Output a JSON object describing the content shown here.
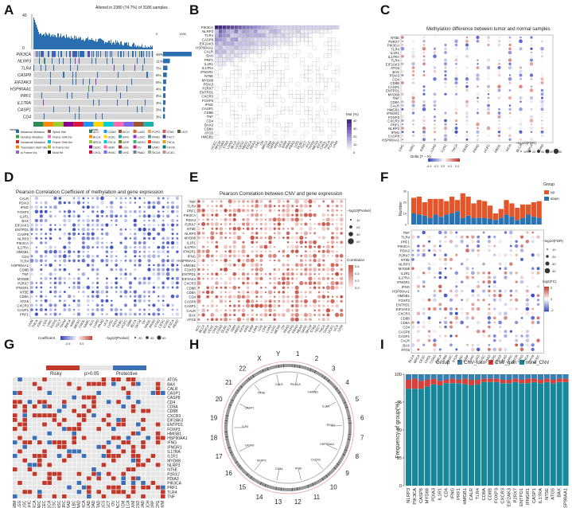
{
  "panels": {
    "A": {
      "letter": "A",
      "title": "Altered in 2380 (74.7%) of 3186 samples.",
      "y_top": "40",
      "y_zero": "0",
      "right_axis_left": "0",
      "right_axis_right": "1000"
    },
    "B": {
      "letter": "B",
      "legend_title": "Mut (%)"
    },
    "C": {
      "letter": "C",
      "title": "Methylation difference between tumor and normal samples",
      "delta_label": "Delta (T − N)",
      "size_label": "−log10(FDR)"
    },
    "D": {
      "letter": "D",
      "title": "Pearson Correlation Coefficient of methylation and gene expression",
      "coef_label": "Coefficient",
      "size_label": "−log10(Pvalue)"
    },
    "E": {
      "letter": "E",
      "title": "Pearson Correlation between CNV and gene expression",
      "size_label": "−log10(Pvalue)",
      "color_label": "Correlation"
    },
    "F": {
      "letter": "F",
      "bar_ylabel": "Number",
      "group_title": "Group",
      "group_items": [
        "up",
        "down"
      ],
      "size_label": "−log10(FDR)",
      "color_label": "log2(FC)"
    },
    "G": {
      "letter": "G",
      "legend": [
        "Risky",
        "p>0.05",
        "Protective"
      ]
    },
    "H": {
      "letter": "H"
    },
    "I": {
      "letter": "I",
      "ylabel": "Frequency of group(%)",
      "legend_title": "Group",
      "legend_items": [
        "CNV_loss",
        "CNV_gain",
        "none_CNV"
      ]
    }
  },
  "chart_data": [
    {
      "panel": "A",
      "type": "heatmap",
      "title": "Altered in 2380 (74.7%) of 3186 samples.",
      "genes": [
        "PIK3CA",
        "NLRP3",
        "TLR4",
        "CASP8",
        "EIF2AK3",
        "HSP90AA1",
        "PRF1",
        "IL17RA",
        "CASP1",
        "CD4"
      ],
      "percent": [
        "46%",
        "11%",
        "7%",
        "6%",
        "5%",
        "4%",
        "4%",
        "4%",
        "3%",
        "3%"
      ],
      "legend_variants": [
        "Missense_Mutation",
        "Nonstop_Mutation",
        "Nonsense_Mutation",
        "Translation_Start_Site",
        "In_Frame_Ins",
        "Splice_Site",
        "Frame_Shift_Ins",
        "Frame_Shift_Del",
        "In_Frame_Del",
        "Multi_Hit"
      ],
      "legend_cancers": [
        "ACC",
        "BLCA",
        "BRCA",
        "CESC",
        "CHOL",
        "COAD",
        "DLBC",
        "ESCA",
        "GBM",
        "HNSC",
        "KICH",
        "KIRC",
        "KIRP",
        "LGG",
        "LIHC",
        "LUAD",
        "LUSC",
        "MESO",
        "OV",
        "PAAD",
        "PCPG",
        "PRAD",
        "READ",
        "SARC",
        "SKCM",
        "STAD",
        "TGCT",
        "THCA",
        "THYM",
        "UCEC",
        "UCS"
      ],
      "legend_title_variant": "Variant",
      "legend_title_cancer": "Cancer"
    },
    {
      "panel": "B",
      "type": "heatmap",
      "genes": [
        "PIK3CA",
        "NLRP3",
        "TLR4",
        "CASP8",
        "EIF2AK3",
        "HSP90AA1",
        "CALR",
        "BAX",
        "PRF1",
        "IL1R1",
        "IL17RA",
        "IFNGR1",
        "NT5E",
        "MYD88",
        "PDIA3",
        "P2RX7",
        "ENTPD1",
        "CXCR3",
        "FOXP3",
        "IFNG",
        "CASP1",
        "CD8B",
        "TNF",
        "CD4",
        "BAX2",
        "CD8A",
        "ATG5",
        "HMGB1"
      ],
      "cancers": [
        "UCEC",
        "SKCM",
        "COAD",
        "STAD",
        "LUAD",
        "BLCA",
        "LUSC",
        "CESC",
        "HNSC",
        "ESCA",
        "READ",
        "LIHC",
        "OV",
        "BRCA",
        "GBM",
        "SARC",
        "KIRC",
        "UCS",
        "KIRP",
        "PAAD",
        "PRAD",
        "LGG",
        "DLBC",
        "TGCT",
        "ACC",
        "THYM",
        "MESO",
        "KICH",
        "CHOL",
        "THCA",
        "PCPG",
        "UVM"
      ],
      "ylim": [
        0,
        40
      ],
      "legend_ticks": [
        "40",
        "30",
        "20",
        "10",
        "0"
      ]
    },
    {
      "panel": "C",
      "type": "scatter",
      "genes": [
        "NT5E",
        "P2RX7",
        "PIK3CA",
        "TLR4",
        "IL1R1",
        "IL17RA",
        "TLR4b",
        "EIF2AK3",
        "ATG5",
        "BAX",
        "PDIA3",
        "CD4",
        "CD8B",
        "CASP1",
        "ENTPD1",
        "MYD88",
        "TNF",
        "CD8A",
        "CALR",
        "HMGB1",
        "IFNGR1",
        "FOXP3",
        "CXCR3",
        "PRF1",
        "NLRP3",
        "IFNG",
        "CASP8",
        "HSP90AA1"
      ],
      "cancers": [
        "LIHC",
        "KIRC",
        "KIRP",
        "LUAD",
        "LUSC",
        "THCA",
        "PAAD",
        "PRAD",
        "UCEC",
        "HNSC",
        "KICH",
        "BLCA",
        "BRCA",
        "COAD"
      ],
      "delta_ticks": [
        "-0.4",
        "-0.2",
        "0.0",
        "0.2",
        "0.4"
      ],
      "size_ticks": [
        "10",
        "20",
        "30",
        "40",
        "50"
      ]
    },
    {
      "panel": "D",
      "type": "scatter",
      "genes": [
        "CALR",
        "PDIA3",
        "IFNG",
        "FOXP3",
        "IL1R1",
        "BAX",
        "EIF2AK3",
        "ENTPD1",
        "CASP8",
        "NLRP3",
        "PIK3CA",
        "IL17RA",
        "HMGB1",
        "CD4",
        "TLR4",
        "HSP90AA1",
        "CD8B",
        "TNF",
        "MYD88",
        "P2RX7",
        "IFNGR1",
        "NT5E",
        "CD8A",
        "ATG5",
        "CXCR3",
        "CASP1",
        "PRF1"
      ],
      "cancers": [
        "UVM",
        "THCA",
        "KIRC",
        "LGG",
        "LIHC",
        "PCPG",
        "TGCT",
        "THYM",
        "BRCA",
        "KIRP",
        "MESO",
        "CHOL",
        "SARC",
        "ACC",
        "LUAD",
        "PAAD",
        "UCS",
        "LUSC",
        "KICH",
        "DLBC",
        "UCEC",
        "GBM",
        "BLCA",
        "SKCM",
        "OV",
        "HNSC",
        "PRAD",
        "STAD",
        "CESC",
        "COAD",
        "ESCA",
        "READ"
      ],
      "coef_ticks": [
        "-0.5",
        "0.0"
      ],
      "size_ticks": [
        "20",
        "40",
        "60"
      ]
    },
    {
      "panel": "E",
      "type": "scatter",
      "genes": [
        "TNF",
        "TLR4",
        "PRF1",
        "PIK3CA",
        "PDIA3",
        "P2RX7",
        "NT5E",
        "NLRP3",
        "MYD88",
        "IL1R1",
        "IL17RA",
        "IFNGR1",
        "IFNG",
        "HSP90AA1",
        "HMGB1",
        "FOXP3",
        "ENTPD1",
        "EIF2AK3",
        "CXCR3",
        "CD8B",
        "CD8A",
        "CD4",
        "CASP8",
        "CASP1",
        "CALR",
        "BAX",
        "ATG5"
      ],
      "cancers": [
        "ACC",
        "BLCA",
        "BRCA",
        "CESC",
        "CHOL",
        "COAD",
        "DLBC",
        "ESCA",
        "GBM",
        "HNSC",
        "KICH",
        "KIRC",
        "KIRP",
        "LAML",
        "LGG",
        "LIHC",
        "LUAD",
        "LUSC",
        "MESO",
        "OV",
        "PAAD",
        "PCPG",
        "PRAD",
        "READ",
        "SARC",
        "SKCM",
        "STAD",
        "TGCT",
        "THCA",
        "THYM",
        "UCEC",
        "UCS",
        "UVM"
      ],
      "size_ticks": [
        "10",
        "20",
        "30",
        "40"
      ],
      "color_ticks": [
        "0.6",
        "0.4",
        "0.2",
        "0.0"
      ]
    },
    {
      "panel": "F",
      "type": "bar",
      "cancers": [
        "BLCA",
        "BRCA",
        "CESC",
        "CHOL",
        "COAD",
        "ESCA",
        "GBM",
        "HNSC",
        "KICH",
        "KIRC",
        "KIRP",
        "LIHC",
        "LUAD",
        "LUSC",
        "PAAD",
        "PCPG",
        "PRAD",
        "READ",
        "SARC",
        "SKCM",
        "STAD",
        "THCA",
        "THYM",
        "UCEC"
      ],
      "series": [
        {
          "name": "up",
          "values": [
            14,
            16,
            12,
            17,
            14,
            16,
            12,
            15,
            10,
            22,
            17,
            13,
            16,
            15,
            12,
            6,
            8,
            13,
            12,
            11,
            12,
            9,
            13,
            15
          ]
        },
        {
          "name": "down",
          "values": [
            10,
            9,
            8,
            6,
            9,
            7,
            9,
            10,
            12,
            6,
            8,
            6,
            6,
            6,
            5,
            4,
            6,
            9,
            7,
            4,
            6,
            9,
            7,
            6
          ]
        }
      ],
      "ylim": [
        0,
        30
      ],
      "yticks": [
        "0",
        "10",
        "20",
        "30"
      ],
      "genes": [
        "TNF",
        "TLR4",
        "PRF1",
        "PIK3CA",
        "PDIA3",
        "P2RX7",
        "NT5E",
        "NLRP3",
        "MYD88",
        "IL1R1",
        "IL17RA",
        "IFNGR1",
        "IFNG",
        "HSP90AA1",
        "HMGB1",
        "FOXP3",
        "ENTPD1",
        "EIF2AK3",
        "CXCR3",
        "CD8B",
        "CD8A",
        "CD4",
        "CASP8",
        "CASP1",
        "CALR",
        "BAX",
        "ATG5"
      ],
      "size_ticks": [
        "10",
        "20",
        "30",
        "40"
      ],
      "color_ticks": [
        "2",
        "0",
        "-2"
      ]
    },
    {
      "panel": "G",
      "type": "heatmap",
      "genes": [
        "ATG5",
        "BAX",
        "CALR",
        "CASP1",
        "CASP8",
        "CD4",
        "CD8A",
        "CD8B",
        "CXCR3",
        "EIF2AK3",
        "ENTPD1",
        "FOXP3",
        "HMGB1",
        "HSP90AA1",
        "IFNG",
        "IFNGR1",
        "IL17RA",
        "IL1R1",
        "MYD88",
        "NLRP3",
        "NT5E",
        "P2RX7",
        "PDIA3",
        "PIK3CA",
        "PRF1",
        "TLR4",
        "TNF"
      ],
      "cancers": [
        "GBM",
        "LGG",
        "LUSC",
        "LIHC",
        "BRCA",
        "SARC",
        "UCEC",
        "ESCA",
        "CESC",
        "HNSC",
        "KIRC",
        "PRAD",
        "DLBC",
        "PAAD",
        "THCA",
        "READ",
        "COAD",
        "STAD",
        "UCS",
        "TGCT",
        "OV",
        "ACC",
        "SKCM",
        "BLCA",
        "UVM",
        "MESO",
        "LUAD",
        "KICH",
        "KIRP",
        "PCPG",
        "THYM"
      ]
    },
    {
      "panel": "H",
      "type": "other",
      "chromosomes": [
        "1",
        "2",
        "3",
        "4",
        "5",
        "6",
        "7",
        "8",
        "9",
        "10",
        "11",
        "12",
        "13",
        "14",
        "15",
        "16",
        "17",
        "18",
        "19",
        "20",
        "21",
        "22",
        "X",
        "Y"
      ],
      "genes": [
        "PIK3CA",
        "HMGB1",
        "IL1R1",
        "PDIA3",
        "HSP90AA1",
        "CXCR3",
        "IFNG",
        "CD8A",
        "NLRP3",
        "CASP8",
        "TLR4",
        "CASP1",
        "NT5E",
        "CALR"
      ]
    },
    {
      "panel": "I",
      "type": "bar",
      "categories": [
        "NLRP3",
        "PIK3CA",
        "CASP8",
        "MYD88",
        "PDIA3",
        "IL1R1",
        "CD4",
        "IFNG",
        "PRF1",
        "HMGB1",
        "CALR",
        "TLR4",
        "CD8A",
        "CD8B",
        "FOXP3",
        "CXCR3",
        "EIF2AK3",
        "P2RX7",
        "ENTPD1",
        "IFNGR1",
        "CASP1",
        "IL17RA",
        "NT5E",
        "ATG5",
        "BAX",
        "HSP90AA1"
      ],
      "series": [
        {
          "name": "CNV_loss",
          "values": [
            5,
            4,
            6,
            5,
            4,
            6,
            5,
            4,
            5,
            4,
            5,
            5,
            4,
            4,
            4,
            5,
            5,
            4,
            5,
            4,
            4,
            5,
            4,
            5,
            4,
            4
          ]
        },
        {
          "name": "CNV_gain",
          "values": [
            8,
            9,
            7,
            6,
            5,
            4,
            3,
            4,
            3,
            5,
            5,
            4,
            3,
            3,
            3,
            3,
            3,
            3,
            3,
            4,
            3,
            3,
            3,
            3,
            3,
            3
          ]
        },
        {
          "name": "none_CNV",
          "values": [
            87,
            87,
            87,
            89,
            91,
            90,
            92,
            92,
            92,
            91,
            90,
            91,
            93,
            93,
            93,
            92,
            92,
            93,
            92,
            92,
            93,
            92,
            93,
            92,
            93,
            93
          ]
        }
      ],
      "ylim": [
        0,
        100
      ],
      "yticks": [
        "0",
        "25",
        "50",
        "75",
        "100"
      ]
    }
  ]
}
